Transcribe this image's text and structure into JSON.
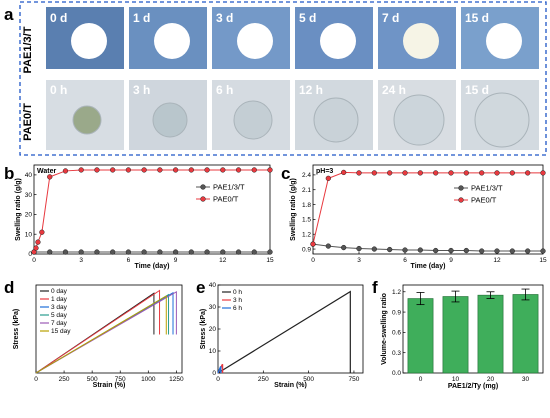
{
  "panel_a": {
    "label": "a",
    "row1_label": "PAE1/3/T",
    "row2_label": "PAE0/T",
    "row1_times": [
      "0 d",
      "1 d",
      "3 d",
      "5 d",
      "7 d",
      "15 d"
    ],
    "row2_times": [
      "0 h",
      "3 h",
      "6 h",
      "12 h",
      "24 h",
      "15 d"
    ]
  },
  "chart_data": [
    {
      "panel": "b",
      "type": "line",
      "annotation": "Water",
      "xlabel": "Time (day)",
      "ylabel": "Swelling ratio (g/g)",
      "xlim": [
        0,
        15
      ],
      "ylim": [
        0,
        45
      ],
      "xticks": [
        0,
        3,
        6,
        9,
        12,
        15
      ],
      "yticks": [
        0,
        10,
        20,
        30,
        40
      ],
      "legend": "right",
      "series": [
        {
          "name": "PAE1/3/T",
          "color": "#555555",
          "x": [
            0,
            1,
            2,
            3,
            4,
            5,
            6,
            7,
            8,
            9,
            10,
            11,
            12,
            13,
            14,
            15
          ],
          "y": [
            1,
            1,
            1,
            1,
            1,
            1,
            1,
            1,
            1,
            1,
            1,
            1,
            1,
            1,
            1,
            1
          ]
        },
        {
          "name": "PAE0/T",
          "color": "#e8393f",
          "x": [
            0,
            0.125,
            0.25,
            0.5,
            1,
            2,
            3,
            4,
            5,
            6,
            7,
            8,
            9,
            10,
            11,
            12,
            13,
            14,
            15
          ],
          "y": [
            1,
            3,
            6,
            11,
            39,
            42,
            42.5,
            42.5,
            42.5,
            42.5,
            42.5,
            42.5,
            42.5,
            42.5,
            42.5,
            42.5,
            42.5,
            42.5,
            42.5
          ]
        }
      ]
    },
    {
      "panel": "c",
      "type": "line",
      "annotation": "pH=3",
      "xlabel": "Time (day)",
      "ylabel": "Swelling ratio (g/g)",
      "xlim": [
        0,
        15
      ],
      "ylim": [
        0.8,
        2.6
      ],
      "xticks": [
        0,
        3,
        6,
        9,
        12,
        15
      ],
      "yticks": [
        0.9,
        1.2,
        1.5,
        1.8,
        2.1,
        2.4
      ],
      "legend": "right",
      "series": [
        {
          "name": "PAE1/3/T",
          "color": "#555555",
          "x": [
            0,
            1,
            2,
            3,
            4,
            5,
            6,
            7,
            8,
            9,
            10,
            11,
            12,
            13,
            14,
            15
          ],
          "y": [
            1.0,
            0.96,
            0.93,
            0.91,
            0.9,
            0.89,
            0.88,
            0.88,
            0.87,
            0.87,
            0.87,
            0.86,
            0.86,
            0.86,
            0.86,
            0.86
          ]
        },
        {
          "name": "PAE0/T",
          "color": "#e8393f",
          "x": [
            0,
            1,
            2,
            3,
            4,
            5,
            6,
            7,
            8,
            9,
            10,
            11,
            12,
            13,
            14,
            15
          ],
          "y": [
            1.0,
            2.33,
            2.45,
            2.44,
            2.44,
            2.44,
            2.44,
            2.44,
            2.44,
            2.44,
            2.44,
            2.44,
            2.44,
            2.44,
            2.44,
            2.44
          ]
        }
      ]
    },
    {
      "panel": "d",
      "type": "line",
      "xlabel": "Strain (%)",
      "ylabel": "Stress (kPa)",
      "xlim": [
        0,
        1300
      ],
      "ylim": [
        0,
        320
      ],
      "xticks": [
        0,
        250,
        500,
        750,
        1000,
        1250
      ],
      "legend": "top-left",
      "series": [
        {
          "name": "0 day",
          "color": "#222222",
          "x": [
            0,
            1050,
            1050
          ],
          "y": [
            0,
            290,
            140
          ]
        },
        {
          "name": "1 day",
          "color": "#e8393f",
          "x": [
            0,
            1100,
            1100
          ],
          "y": [
            0,
            300,
            140
          ]
        },
        {
          "name": "3 day",
          "color": "#1e6fd9",
          "x": [
            0,
            1220,
            1220
          ],
          "y": [
            0,
            292,
            140
          ]
        },
        {
          "name": "5 day",
          "color": "#2a9d8f",
          "x": [
            0,
            1180,
            1180
          ],
          "y": [
            0,
            285,
            140
          ]
        },
        {
          "name": "7 day",
          "color": "#9b59b6",
          "x": [
            0,
            1250,
            1250
          ],
          "y": [
            0,
            295,
            140
          ]
        },
        {
          "name": "15 day",
          "color": "#b8a000",
          "x": [
            0,
            1160,
            1160
          ],
          "y": [
            0,
            280,
            140
          ]
        }
      ]
    },
    {
      "panel": "e",
      "type": "line",
      "xlabel": "Strain (%)",
      "ylabel": "Stress (kPa)",
      "xlim": [
        0,
        800
      ],
      "ylim": [
        0,
        40
      ],
      "xticks": [
        0,
        250,
        500,
        750
      ],
      "yticks": [
        0,
        10,
        20,
        30,
        40
      ],
      "legend": "top-left",
      "series": [
        {
          "name": "0 h",
          "color": "#222222",
          "x": [
            0,
            730,
            730
          ],
          "y": [
            0,
            37,
            0
          ]
        },
        {
          "name": "3 h",
          "color": "#e8393f",
          "x": [
            0,
            25,
            25
          ],
          "y": [
            0,
            4,
            0
          ]
        },
        {
          "name": "6 h",
          "color": "#1e6fd9",
          "x": [
            0,
            15,
            15
          ],
          "y": [
            0,
            3,
            0
          ]
        }
      ]
    },
    {
      "panel": "f",
      "type": "bar",
      "xlabel": "PAE1/2/Ty (mg)",
      "ylabel": "Volume-swelling ratio",
      "categories": [
        "0",
        "10",
        "20",
        "30"
      ],
      "values": [
        1.1,
        1.13,
        1.15,
        1.16
      ],
      "errors": [
        0.09,
        0.08,
        0.05,
        0.08
      ],
      "ylim": [
        0,
        1.3
      ],
      "yticks": [
        0,
        0.3,
        0.6,
        0.9,
        1.2
      ],
      "color": "#3fae5b"
    }
  ],
  "labels": {
    "b": "b",
    "c": "c",
    "d": "d",
    "e": "e",
    "f": "f"
  }
}
